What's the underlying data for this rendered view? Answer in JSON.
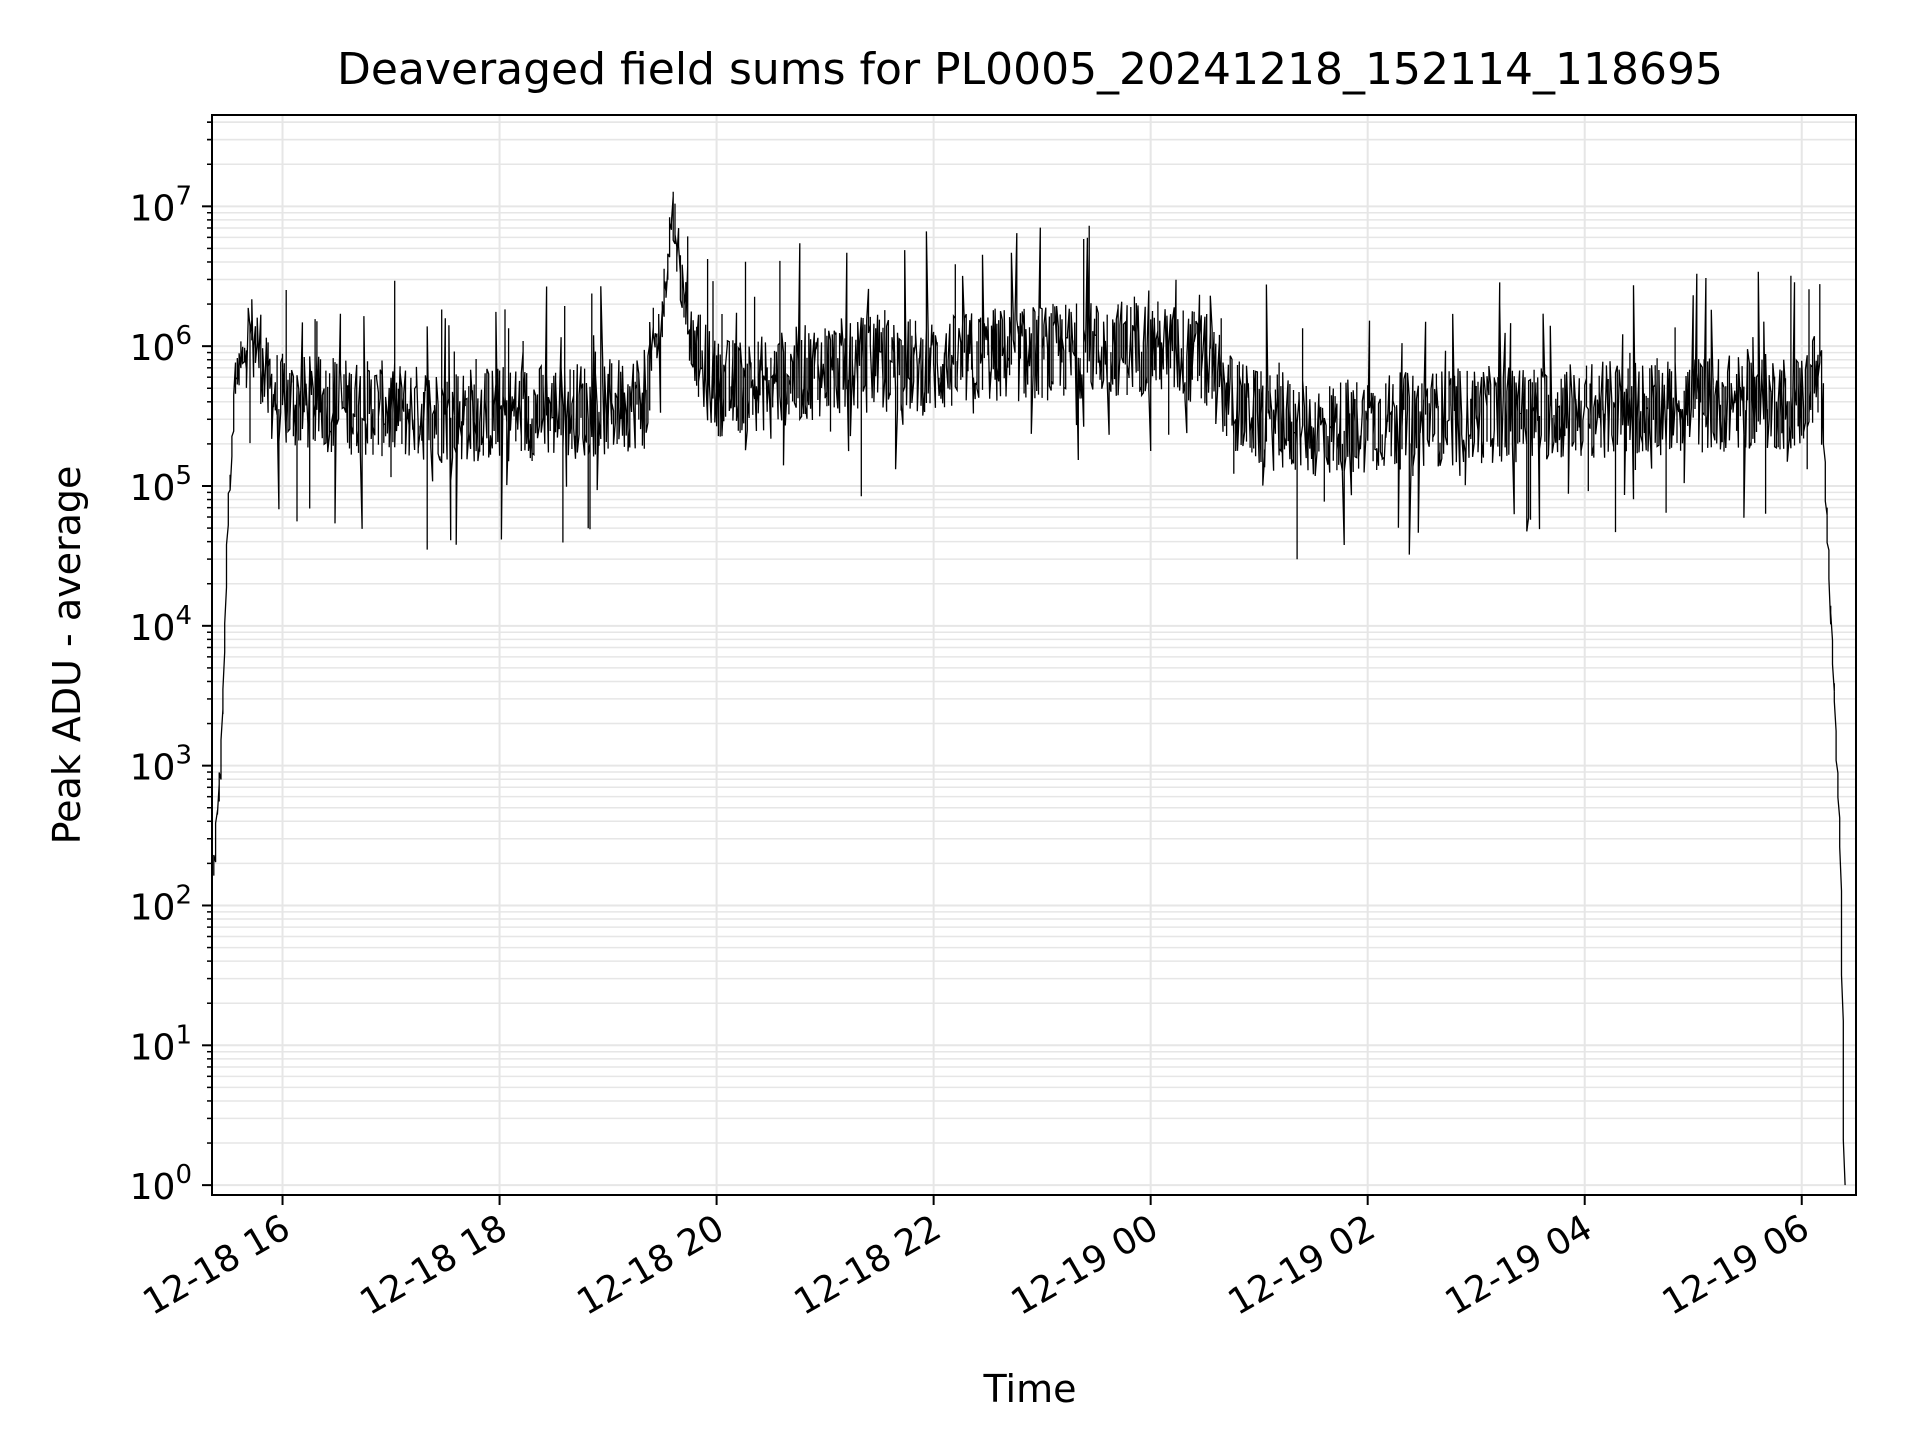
{
  "chart_data": {
    "type": "line",
    "title": "Deaveraged field sums for PL0005_20241218_152114_118695",
    "xlabel": "Time",
    "ylabel": "Peak ADU - average",
    "yscale": "log",
    "xlim": [
      "2024-12-18 15:21",
      "2024-12-19 06:30"
    ],
    "ylim": [
      0.85,
      45000000
    ],
    "grid": true,
    "line_color": "#000000",
    "grid_color": "#e6e6e6",
    "x_ticks": [
      {
        "value": "2024-12-18 16:00",
        "label": "12-18 16"
      },
      {
        "value": "2024-12-18 18:00",
        "label": "12-18 18"
      },
      {
        "value": "2024-12-18 20:00",
        "label": "12-18 20"
      },
      {
        "value": "2024-12-18 22:00",
        "label": "12-18 22"
      },
      {
        "value": "2024-12-19 00:00",
        "label": "12-19 00"
      },
      {
        "value": "2024-12-19 02:00",
        "label": "12-19 02"
      },
      {
        "value": "2024-12-19 04:00",
        "label": "12-19 04"
      },
      {
        "value": "2024-12-19 06:00",
        "label": "12-19 06"
      }
    ],
    "y_ticks": [
      {
        "value": 1,
        "base": "10",
        "exp": "0"
      },
      {
        "value": 10,
        "base": "10",
        "exp": "1"
      },
      {
        "value": 100,
        "base": "10",
        "exp": "2"
      },
      {
        "value": 1000,
        "base": "10",
        "exp": "3"
      },
      {
        "value": 10000,
        "base": "10",
        "exp": "4"
      },
      {
        "value": 100000,
        "base": "10",
        "exp": "5"
      },
      {
        "value": 1000000,
        "base": "10",
        "exp": "6"
      },
      {
        "value": 10000000,
        "base": "10",
        "exp": "7"
      }
    ],
    "series": [
      {
        "x": [
          "2024-12-18 15:22",
          "2024-12-18 15:24",
          "2024-12-18 15:26",
          "2024-12-18 15:28",
          "2024-12-18 15:30",
          "2024-12-18 15:32",
          "2024-12-18 15:35",
          "2024-12-18 15:38",
          "2024-12-18 15:42",
          "2024-12-18 15:48",
          "2024-12-18 15:52",
          "2024-12-18 15:56",
          "2024-12-18 16:00",
          "2024-12-18 16:30",
          "2024-12-18 17:00",
          "2024-12-18 17:30",
          "2024-12-18 18:00",
          "2024-12-18 18:30",
          "2024-12-18 19:00",
          "2024-12-18 19:20",
          "2024-12-18 19:30",
          "2024-12-18 19:36",
          "2024-12-18 19:42",
          "2024-12-18 19:48",
          "2024-12-18 20:00",
          "2024-12-18 20:30",
          "2024-12-18 21:00",
          "2024-12-18 21:30",
          "2024-12-18 22:00",
          "2024-12-18 22:30",
          "2024-12-18 23:00",
          "2024-12-18 23:30",
          "2024-12-19 00:00",
          "2024-12-19 00:30",
          "2024-12-19 00:45",
          "2024-12-19 01:00",
          "2024-12-19 01:30",
          "2024-12-19 02:00",
          "2024-12-19 02:30",
          "2024-12-19 03:00",
          "2024-12-19 03:30",
          "2024-12-19 04:00",
          "2024-12-19 04:30",
          "2024-12-19 05:00",
          "2024-12-19 05:30",
          "2024-12-19 06:00",
          "2024-12-19 06:08",
          "2024-12-19 06:12",
          "2024-12-19 06:16",
          "2024-12-19 06:20",
          "2024-12-19 06:22",
          "2024-12-19 06:24"
        ],
        "y": [
          150,
          400,
          900,
          5000,
          50000,
          200000,
          600000,
          900000,
          1200000,
          900000,
          500000,
          450000,
          400000,
          380000,
          350000,
          320000,
          330000,
          340000,
          360000,
          420000,
          1500000,
          10000000,
          2500000,
          900000,
          500000,
          550000,
          700000,
          750000,
          700000,
          850000,
          900000,
          950000,
          1000000,
          800000,
          400000,
          300000,
          250000,
          280000,
          300000,
          320000,
          330000,
          350000,
          360000,
          380000,
          400000,
          400000,
          600000,
          400000,
          20000,
          1000,
          150,
          1
        ]
      }
    ]
  }
}
